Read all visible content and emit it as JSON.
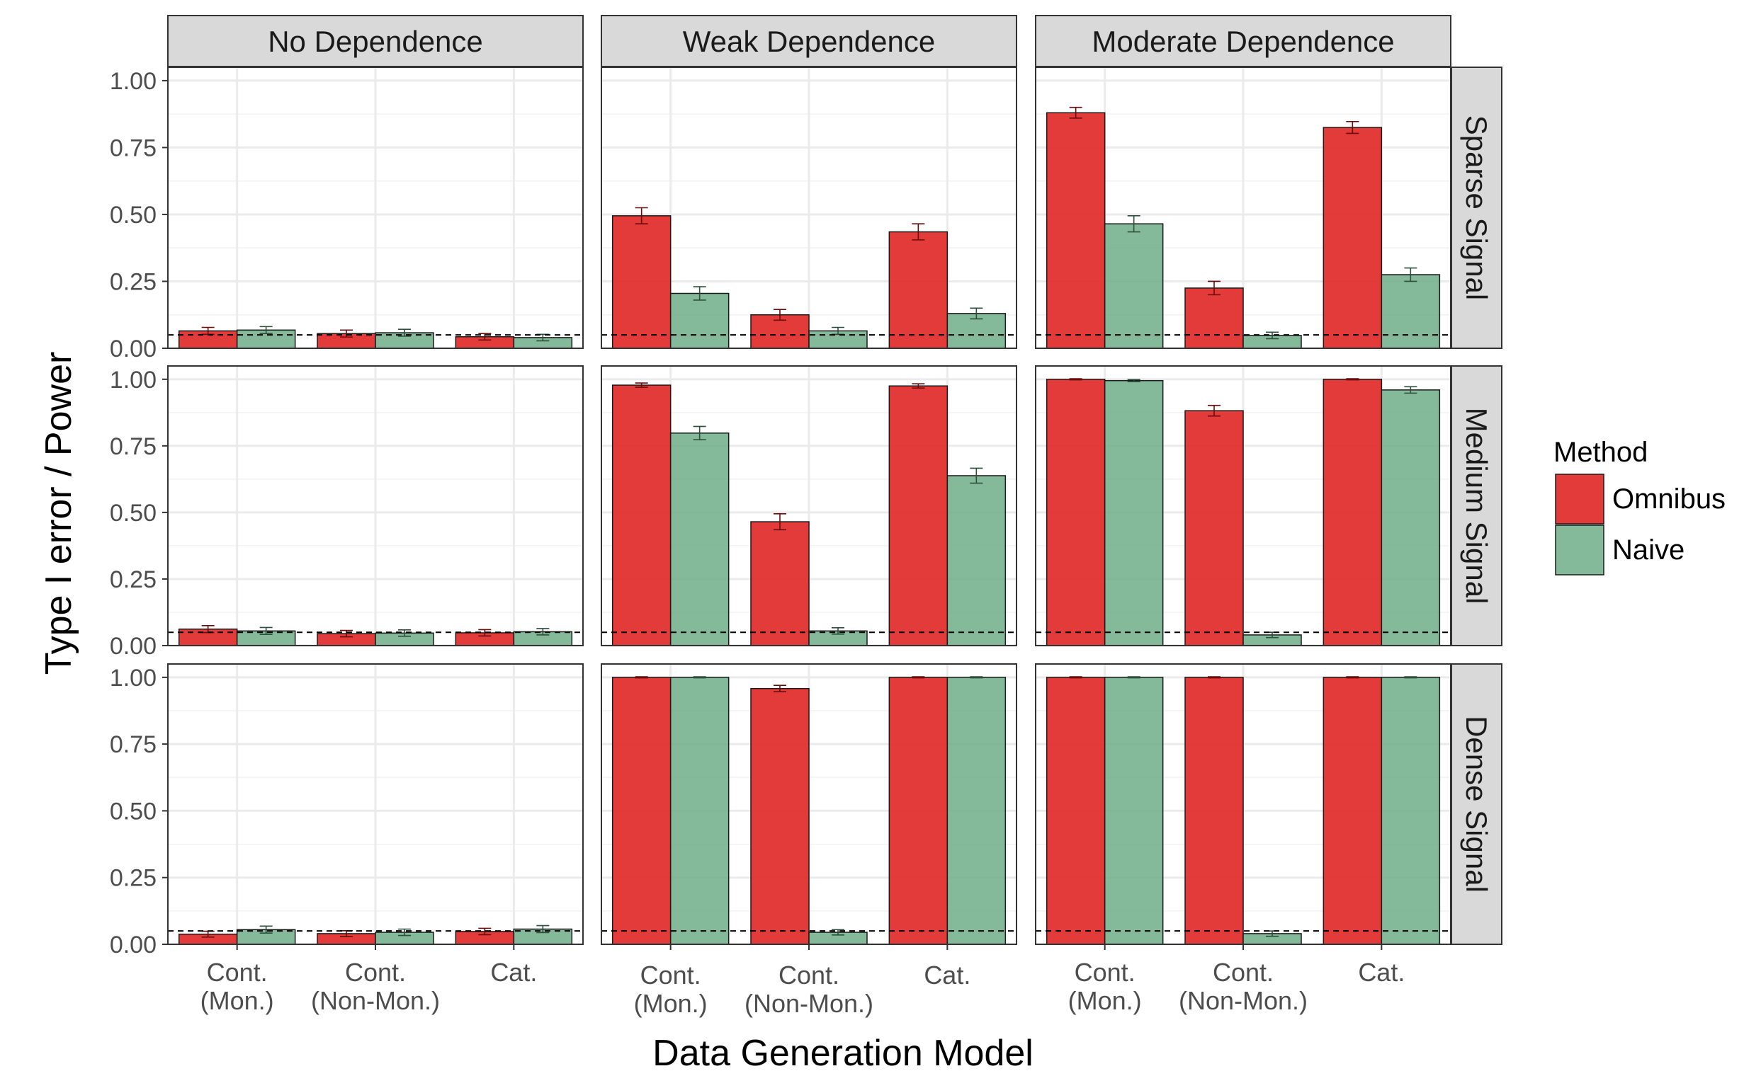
{
  "chart_data": {
    "type": "bar",
    "xlabel": "Data Generation Model",
    "ylabel": "Type I error / Power",
    "ylim": [
      0,
      1.05
    ],
    "yticks": [
      "0.00",
      "0.25",
      "0.50",
      "0.75",
      "1.00"
    ],
    "ytick_values": [
      0,
      0.25,
      0.5,
      0.75,
      1.0
    ],
    "reference_line": 0.05,
    "grid": true,
    "columns": [
      "No Dependence",
      "Weak Dependence",
      "Moderate Dependence"
    ],
    "rows": [
      "Sparse Signal",
      "Medium Signal",
      "Dense Signal"
    ],
    "categories": [
      [
        "Cont.",
        "(Mon.)"
      ],
      [
        "Cont.",
        "(Non-Mon.)"
      ],
      [
        "Cat."
      ]
    ],
    "legend": {
      "title": "Method",
      "position": "right",
      "items": [
        {
          "name": "Omnibus",
          "color": "#e0302f"
        },
        {
          "name": "Naive",
          "color": "#6fae88"
        }
      ]
    },
    "panels": [
      {
        "row": "Sparse Signal",
        "col": "No Dependence",
        "series": [
          {
            "name": "Omnibus",
            "values": [
              0.065,
              0.055,
              0.043
            ],
            "err": [
              0.013,
              0.013,
              0.012
            ]
          },
          {
            "name": "Naive",
            "values": [
              0.068,
              0.058,
              0.04
            ],
            "err": [
              0.013,
              0.013,
              0.012
            ]
          }
        ]
      },
      {
        "row": "Sparse Signal",
        "col": "Weak Dependence",
        "series": [
          {
            "name": "Omnibus",
            "values": [
              0.495,
              0.125,
              0.435
            ],
            "err": [
              0.03,
              0.02,
              0.03
            ]
          },
          {
            "name": "Naive",
            "values": [
              0.205,
              0.065,
              0.13
            ],
            "err": [
              0.025,
              0.013,
              0.02
            ]
          }
        ]
      },
      {
        "row": "Sparse Signal",
        "col": "Moderate Dependence",
        "series": [
          {
            "name": "Omnibus",
            "values": [
              0.88,
              0.225,
              0.825
            ],
            "err": [
              0.02,
              0.025,
              0.022
            ]
          },
          {
            "name": "Naive",
            "values": [
              0.465,
              0.048,
              0.275
            ],
            "err": [
              0.03,
              0.012,
              0.025
            ]
          }
        ]
      },
      {
        "row": "Medium Signal",
        "col": "No Dependence",
        "series": [
          {
            "name": "Omnibus",
            "values": [
              0.062,
              0.045,
              0.048
            ],
            "err": [
              0.013,
              0.012,
              0.012
            ]
          },
          {
            "name": "Naive",
            "values": [
              0.055,
              0.047,
              0.052
            ],
            "err": [
              0.013,
              0.012,
              0.012
            ]
          }
        ]
      },
      {
        "row": "Medium Signal",
        "col": "Weak Dependence",
        "series": [
          {
            "name": "Omnibus",
            "values": [
              0.978,
              0.465,
              0.975
            ],
            "err": [
              0.008,
              0.03,
              0.008
            ]
          },
          {
            "name": "Naive",
            "values": [
              0.798,
              0.055,
              0.638
            ],
            "err": [
              0.025,
              0.012,
              0.028
            ]
          }
        ]
      },
      {
        "row": "Medium Signal",
        "col": "Moderate Dependence",
        "series": [
          {
            "name": "Omnibus",
            "values": [
              1.0,
              0.882,
              1.0
            ],
            "err": [
              0.002,
              0.02,
              0.002
            ]
          },
          {
            "name": "Naive",
            "values": [
              0.995,
              0.04,
              0.96
            ],
            "err": [
              0.004,
              0.01,
              0.012
            ]
          }
        ]
      },
      {
        "row": "Dense Signal",
        "col": "No Dependence",
        "series": [
          {
            "name": "Omnibus",
            "values": [
              0.038,
              0.04,
              0.048
            ],
            "err": [
              0.011,
              0.011,
              0.012
            ]
          },
          {
            "name": "Naive",
            "values": [
              0.055,
              0.045,
              0.057
            ],
            "err": [
              0.013,
              0.012,
              0.013
            ]
          }
        ]
      },
      {
        "row": "Dense Signal",
        "col": "Weak Dependence",
        "series": [
          {
            "name": "Omnibus",
            "values": [
              1.0,
              0.958,
              1.0
            ],
            "err": [
              0.002,
              0.012,
              0.002
            ]
          },
          {
            "name": "Naive",
            "values": [
              1.0,
              0.045,
              1.0
            ],
            "err": [
              0.002,
              0.01,
              0.002
            ]
          }
        ]
      },
      {
        "row": "Dense Signal",
        "col": "Moderate Dependence",
        "series": [
          {
            "name": "Omnibus",
            "values": [
              1.0,
              1.0,
              1.0
            ],
            "err": [
              0.002,
              0.002,
              0.002
            ]
          },
          {
            "name": "Naive",
            "values": [
              1.0,
              0.04,
              1.0
            ],
            "err": [
              0.002,
              0.01,
              0.002
            ]
          }
        ]
      }
    ]
  }
}
